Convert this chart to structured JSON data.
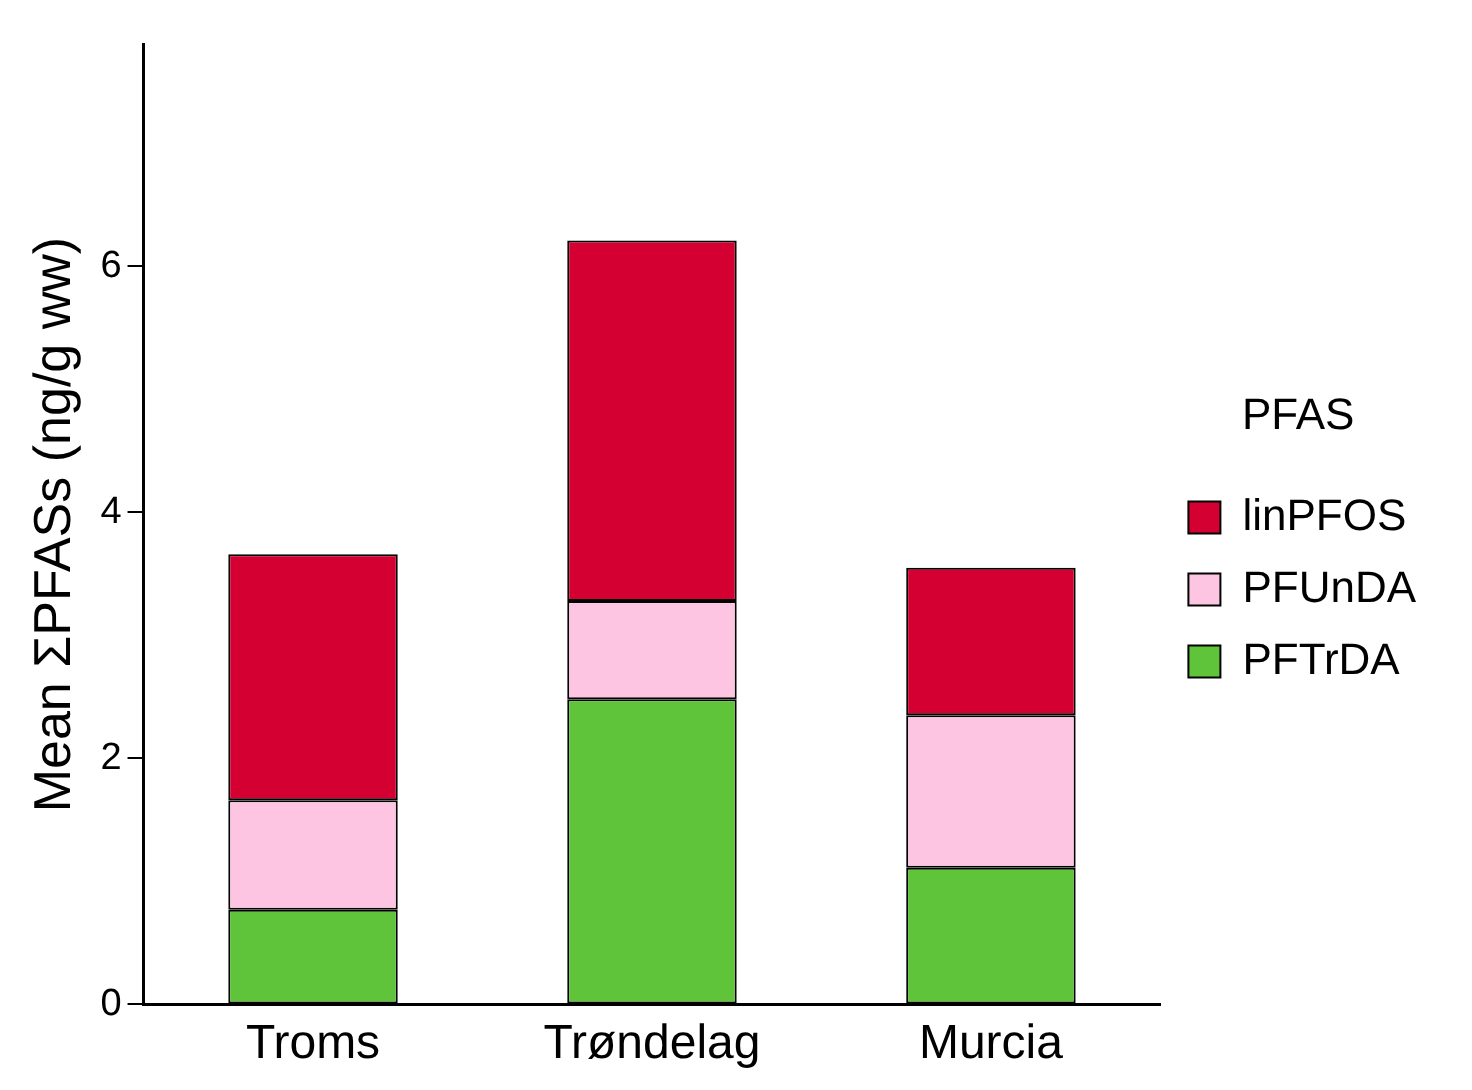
{
  "chart_data": {
    "type": "bar",
    "stacked": true,
    "ylabel": "Mean ΣPFASs (ng/g ww)",
    "legend_title": "PFAS",
    "legend": "right",
    "grid": false,
    "categories": [
      "Troms",
      "Trøndelag",
      "Murcia"
    ],
    "ylim": [
      0,
      7.8
    ],
    "yticks": [
      0,
      2,
      4,
      6
    ],
    "series": [
      {
        "name": "PFTrDA",
        "color": "#5fc43a",
        "values": [
          0.77,
          2.48,
          1.11
        ]
      },
      {
        "name": "PFUnDA",
        "color": "#fdc5e1",
        "values": [
          0.89,
          0.8,
          1.24
        ]
      },
      {
        "name": "linPFOS",
        "color": "#d50032",
        "values": [
          2.0,
          2.93,
          1.2
        ]
      }
    ]
  }
}
